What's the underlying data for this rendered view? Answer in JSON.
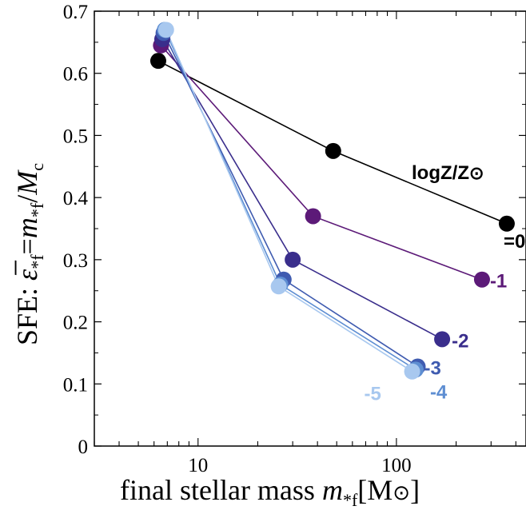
{
  "chart_data": {
    "type": "line",
    "title": "",
    "xlabel": "final stellar mass m*f[M⊙]",
    "ylabel": "SFE: ε*f=m*f/Mc",
    "xscale": "log",
    "xlim": [
      3,
      450
    ],
    "ylim": [
      0,
      0.7
    ],
    "x_ticks": [
      {
        "value": 10,
        "label": "10"
      },
      {
        "value": 100,
        "label": "100"
      }
    ],
    "y_ticks": [
      {
        "value": 0,
        "label": "0"
      },
      {
        "value": 0.1,
        "label": "0.1"
      },
      {
        "value": 0.2,
        "label": "0.2"
      },
      {
        "value": 0.3,
        "label": "0.3"
      },
      {
        "value": 0.4,
        "label": "0.4"
      },
      {
        "value": 0.5,
        "label": "0.5"
      },
      {
        "value": 0.6,
        "label": "0.6"
      },
      {
        "value": 0.7,
        "label": "0.7"
      }
    ],
    "grid": false,
    "series_label_title": "logZ/Z⊙",
    "series": [
      {
        "label": "=0",
        "color": "#000000",
        "points": [
          [
            6.3,
            0.62
          ],
          [
            48,
            0.475
          ],
          [
            360,
            0.358
          ]
        ]
      },
      {
        "label": "-1",
        "color": "#5c1a78",
        "points": [
          [
            6.5,
            0.645
          ],
          [
            38,
            0.37
          ],
          [
            270,
            0.268
          ]
        ]
      },
      {
        "label": "-2",
        "color": "#3a2e8c",
        "points": [
          [
            6.6,
            0.655
          ],
          [
            30,
            0.3
          ],
          [
            170,
            0.172
          ]
        ]
      },
      {
        "label": "-3",
        "color": "#3f5bb0",
        "points": [
          [
            6.7,
            0.665
          ],
          [
            27,
            0.268
          ],
          [
            128,
            0.128
          ]
        ]
      },
      {
        "label": "-4",
        "color": "#5e8ed2",
        "points": [
          [
            6.8,
            0.67
          ],
          [
            26,
            0.26
          ],
          [
            125,
            0.123
          ]
        ]
      },
      {
        "label": "-5",
        "color": "#a8c8ef",
        "points": [
          [
            6.9,
            0.67
          ],
          [
            25.5,
            0.257
          ],
          [
            120,
            0.12
          ]
        ]
      }
    ]
  }
}
